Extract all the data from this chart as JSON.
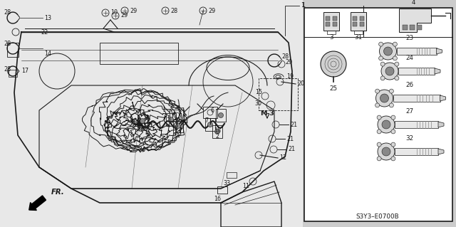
{
  "fig_width": 6.4,
  "fig_height": 3.19,
  "dpi": 100,
  "bg_color": "#c8c8c8",
  "line_color": "#1a1a1a",
  "diagram_code": "S3Y3–E0700B",
  "panel_border": "#000000",
  "annotation_fontsize": 5.8
}
